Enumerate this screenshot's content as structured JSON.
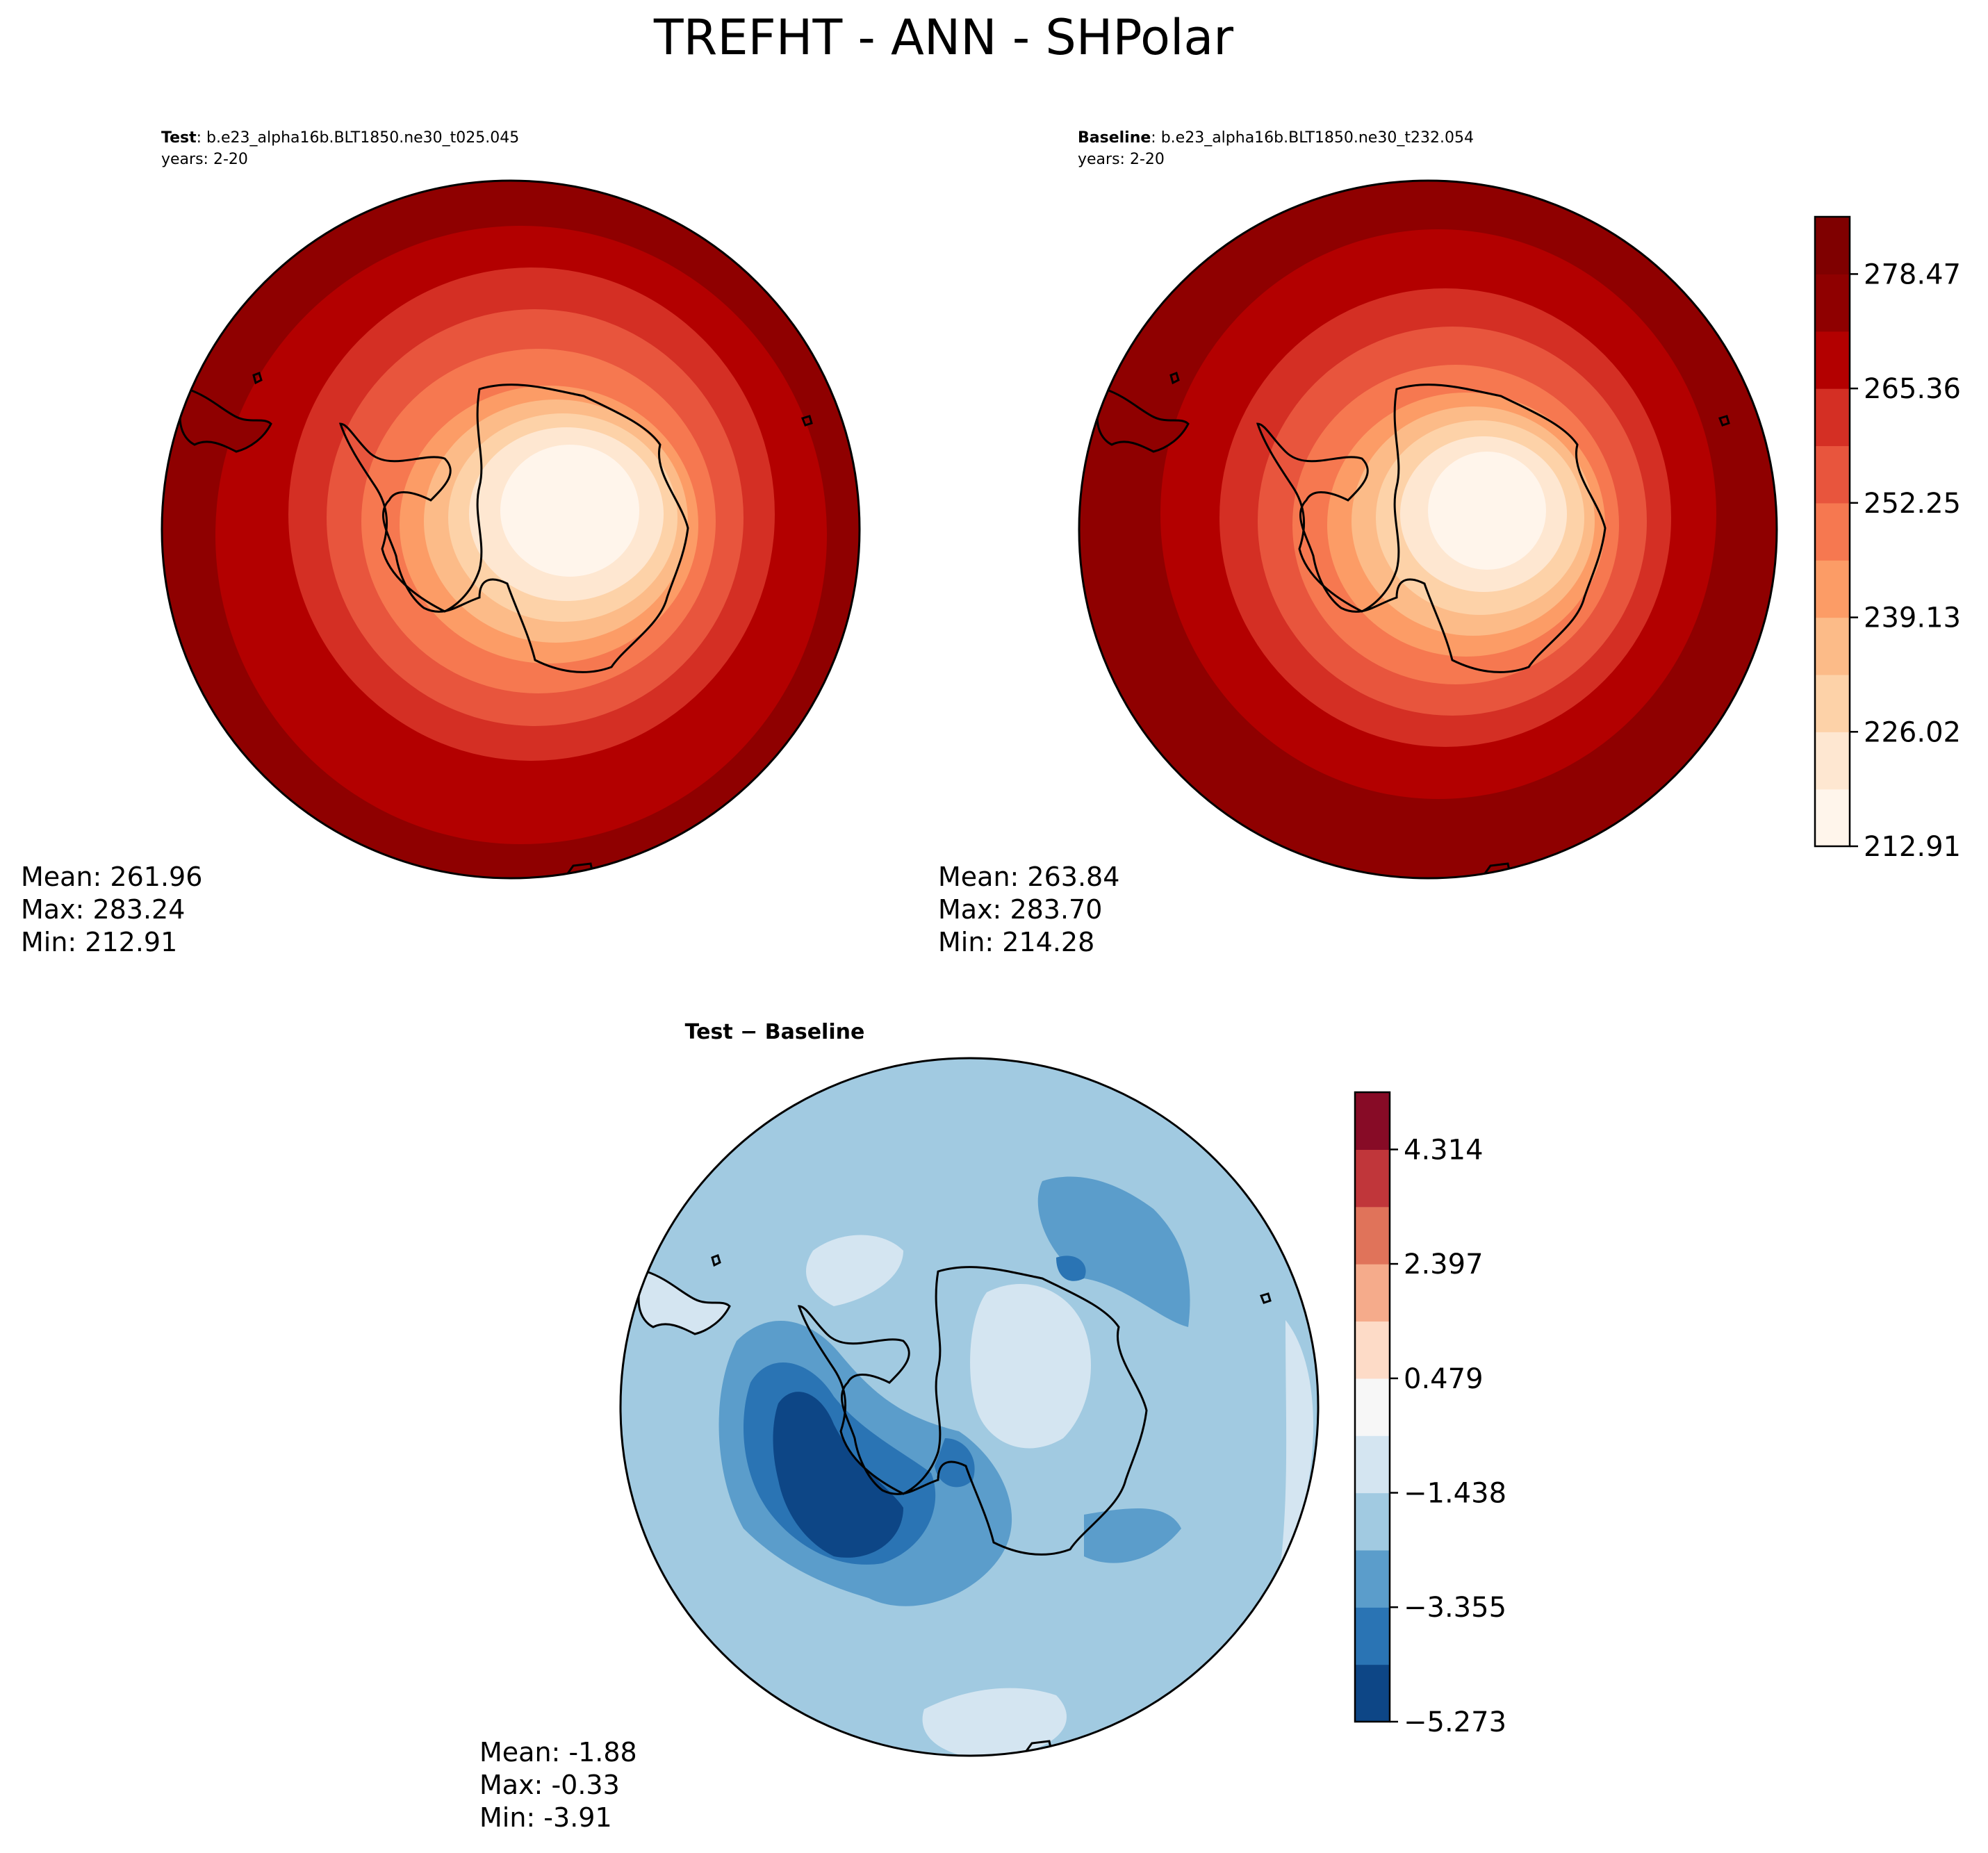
{
  "figure": {
    "title": "TREFHT - ANN - SHPolar"
  },
  "panels": {
    "test": {
      "label_bold": "Test",
      "label_rest": ": b.e23_alpha16b.BLT1850.ne30_t025.045",
      "years": "years: 2-20",
      "stats": [
        "Mean: 261.96",
        "Max: 283.24",
        "Min: 212.91"
      ]
    },
    "baseline": {
      "label_bold": "Baseline",
      "label_rest": ": b.e23_alpha16b.BLT1850.ne30_t232.054",
      "years": "years: 2-20",
      "stats": [
        "Mean: 263.84",
        "Max: 283.70",
        "Min: 214.28"
      ]
    },
    "diff": {
      "label": "Test − Baseline",
      "stats": [
        "Mean: -1.88",
        "Max: -0.33",
        "Min: -3.91"
      ]
    }
  },
  "colorbars": {
    "main": {
      "tick_labels": [
        "212.91",
        "226.02",
        "239.13",
        "252.25",
        "265.36",
        "278.47"
      ],
      "tick_values": [
        212.91,
        226.02,
        239.13,
        252.25,
        265.36,
        278.47
      ],
      "range": [
        212.91,
        285.03
      ],
      "colors": [
        "#fff5eb",
        "#fee7d1",
        "#fdd2a8",
        "#fcbb88",
        "#fc9c66",
        "#f67850",
        "#e8553d",
        "#d42f24",
        "#b30000",
        "#8f0000",
        "#7f0000"
      ]
    },
    "diff": {
      "tick_labels": [
        "−5.273",
        "−3.355",
        "−1.438",
        "0.479",
        "2.397",
        "4.314"
      ],
      "tick_values": [
        -5.273,
        -3.355,
        -1.438,
        0.479,
        2.397,
        4.314
      ],
      "range": [
        -5.273,
        5.273
      ],
      "colors": [
        "#0d4686",
        "#2a74b4",
        "#5b9dcb",
        "#a1cae1",
        "#d4e5f1",
        "#f7f7f7",
        "#fddbc7",
        "#f5ab8b",
        "#e0735a",
        "#c0363a",
        "#870b26"
      ]
    }
  },
  "map_fill": {
    "main_rings_test": [
      "#8f0000",
      "#b30000",
      "#d42f24",
      "#e8553d",
      "#f67850",
      "#fc9c66",
      "#fcbb88",
      "#fdd2a8",
      "#fee7d1",
      "#fff5eb"
    ],
    "main_rings_base": [
      "#8f0000",
      "#b30000",
      "#d42f24",
      "#e8553d",
      "#f67850",
      "#fc9c66",
      "#fcbb88",
      "#fdd2a8",
      "#fee7d1",
      "#fff5eb"
    ],
    "diff_base": "#a1cae1",
    "diff_light": "#d4e5f1",
    "diff_mid": "#5b9dcb",
    "diff_dark": "#2a74b4",
    "diff_darkest": "#0d4686"
  }
}
